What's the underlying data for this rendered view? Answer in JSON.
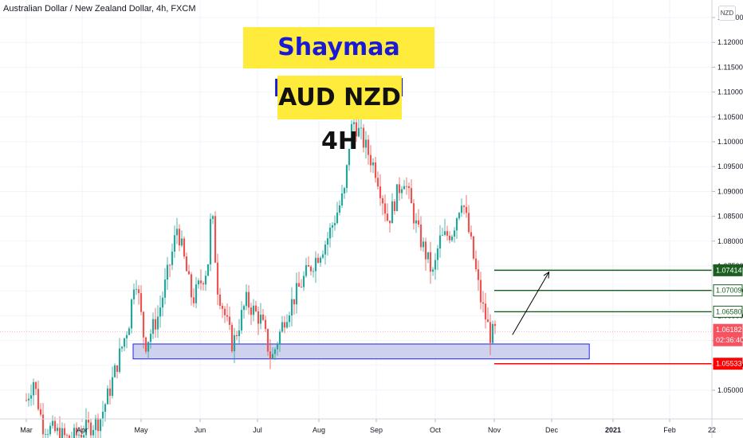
{
  "header": {
    "symbol_title": "Australian Dollar / New Zealand Dollar, 4h, FXCM"
  },
  "annotations": {
    "author": "Shaymaa Mohamed",
    "pair_label": "AUD NZD 4H"
  },
  "currency_button": "NZD",
  "price_scale": {
    "ticks": [
      "1.12500",
      "1.12000",
      "1.11500",
      "1.11000",
      "1.10500",
      "1.10000",
      "1.09500",
      "1.09000",
      "1.08500",
      "1.08000",
      "1.07500",
      "1.07000",
      "1.06500",
      "1.06000",
      "1.05500",
      "1.05000"
    ]
  },
  "time_axis": {
    "labels": [
      "Mar",
      "Apr",
      "May",
      "Jun",
      "Jul",
      "Aug",
      "Sep",
      "Oct",
      "Nov",
      "Dec",
      "2021",
      "Feb",
      "22"
    ]
  },
  "price_tags": [
    {
      "label": "1.07414",
      "bg": "#1b5e20",
      "fg": "#ffffff"
    },
    {
      "label": "1.07009",
      "bg": "#ffffff",
      "fg": "#1b5e20"
    },
    {
      "label": "1.06580",
      "bg": "#ffffff",
      "fg": "#1b5e20"
    },
    {
      "label": "1.06182",
      "bg": "#f7525f",
      "fg": "#ffffff"
    },
    {
      "label": "02:36:40",
      "bg": "#f7525f",
      "fg": "#ffffff"
    },
    {
      "label": "1.05533",
      "bg": "#ff0000",
      "fg": "#ffffff"
    }
  ],
  "colors": {
    "up": "#26a69a",
    "down": "#ef5350",
    "target_line": "#1b5e20",
    "stop_line": "#ff0000",
    "zone_fill": "#c5cae9",
    "zone_border": "#2222ee"
  },
  "chart_data": {
    "type": "candlestick",
    "symbol": "AUD/NZD",
    "timeframe": "4h",
    "source": "FXCM",
    "ylim": [
      1.045,
      1.128
    ],
    "x_labels": [
      "Mar",
      "Apr",
      "May",
      "Jun",
      "Jul",
      "Aug",
      "Sep",
      "Oct",
      "Nov",
      "Dec",
      "2021",
      "Feb",
      "22"
    ],
    "approx_closing_path": [
      {
        "date": "2020-03-01",
        "value": 1.048
      },
      {
        "date": "2020-03-05",
        "value": 1.052
      },
      {
        "date": "2020-03-10",
        "value": 1.043
      },
      {
        "date": "2020-03-25",
        "value": 1.04
      },
      {
        "date": "2020-04-10",
        "value": 1.044
      },
      {
        "date": "2020-04-15",
        "value": 1.05
      },
      {
        "date": "2020-04-25",
        "value": 1.064
      },
      {
        "date": "2020-04-28",
        "value": 1.074
      },
      {
        "date": "2020-05-03",
        "value": 1.059
      },
      {
        "date": "2020-05-10",
        "value": 1.065
      },
      {
        "date": "2020-05-17",
        "value": 1.077
      },
      {
        "date": "2020-05-20",
        "value": 1.083
      },
      {
        "date": "2020-05-28",
        "value": 1.068
      },
      {
        "date": "2020-06-05",
        "value": 1.075
      },
      {
        "date": "2020-06-07",
        "value": 1.087
      },
      {
        "date": "2020-06-10",
        "value": 1.071
      },
      {
        "date": "2020-06-18",
        "value": 1.059
      },
      {
        "date": "2020-06-25",
        "value": 1.068
      },
      {
        "date": "2020-07-03",
        "value": 1.064
      },
      {
        "date": "2020-07-08",
        "value": 1.056
      },
      {
        "date": "2020-07-15",
        "value": 1.065
      },
      {
        "date": "2020-07-25",
        "value": 1.073
      },
      {
        "date": "2020-08-05",
        "value": 1.08
      },
      {
        "date": "2020-08-15",
        "value": 1.09
      },
      {
        "date": "2020-08-18",
        "value": 1.102
      },
      {
        "date": "2020-08-20",
        "value": 1.104
      },
      {
        "date": "2020-08-25",
        "value": 1.1
      },
      {
        "date": "2020-09-01",
        "value": 1.094
      },
      {
        "date": "2020-09-07",
        "value": 1.084
      },
      {
        "date": "2020-09-12",
        "value": 1.09
      },
      {
        "date": "2020-09-15",
        "value": 1.093
      },
      {
        "date": "2020-09-22",
        "value": 1.082
      },
      {
        "date": "2020-09-30",
        "value": 1.073
      },
      {
        "date": "2020-10-03",
        "value": 1.08
      },
      {
        "date": "2020-10-10",
        "value": 1.082
      },
      {
        "date": "2020-10-15",
        "value": 1.089
      },
      {
        "date": "2020-10-20",
        "value": 1.079
      },
      {
        "date": "2020-10-25",
        "value": 1.068
      },
      {
        "date": "2020-10-30",
        "value": 1.061
      },
      {
        "date": "2020-11-02",
        "value": 1.062
      }
    ],
    "levels": [
      {
        "label": "1.07414",
        "value": 1.07414
      },
      {
        "label": "1.07009",
        "value": 1.07009
      },
      {
        "label": "1.06580",
        "value": 1.0658
      },
      {
        "label": "1.05533",
        "value": 1.05533
      }
    ],
    "current_price": 1.06182,
    "countdown": "02:36:40",
    "demand_zone": {
      "from_date": "2020-05-01",
      "to_date": "2020-12-20",
      "low": 1.0563,
      "high": 1.0593
    },
    "projection_arrow": {
      "from": {
        "date": "2020-11-03",
        "value": 1.0618
      },
      "to": {
        "date": "2020-11-30",
        "value": 1.0741
      }
    }
  }
}
